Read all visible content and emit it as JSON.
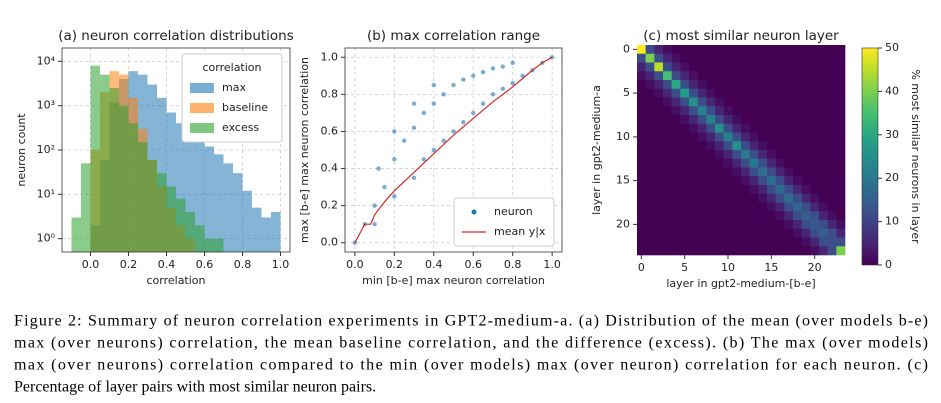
{
  "chart_data": [
    {
      "type": "histogram",
      "title": "(a) neuron correlation distributions",
      "xlabel": "correlation",
      "ylabel": "neuron count",
      "log_y": true,
      "grid": true,
      "legend_title": "correlation",
      "legend": "upper right",
      "bins": [
        -0.1,
        -0.05,
        0,
        0.05,
        0.1,
        0.15,
        0.2,
        0.25,
        0.3,
        0.35,
        0.4,
        0.45,
        0.5,
        0.55,
        0.6,
        0.65,
        0.7,
        0.75,
        0.8,
        0.85,
        0.9,
        0.95,
        1.0
      ],
      "series": [
        {
          "name": "max",
          "color": "#1f77b4",
          "values": [
            0,
            0,
            2,
            60,
            1200,
            4000,
            6000,
            5000,
            3000,
            1500,
            700,
            400,
            250,
            180,
            120,
            80,
            50,
            30,
            12,
            5,
            3,
            4
          ]
        },
        {
          "name": "baseline",
          "color": "#ff7f0e",
          "values": [
            0,
            0,
            100,
            2000,
            6000,
            5000,
            1500,
            300,
            60,
            15,
            5,
            2,
            1,
            0,
            0,
            0,
            0,
            0,
            0,
            0,
            0,
            0
          ]
        },
        {
          "name": "excess",
          "color": "#2ca02c",
          "values": [
            3,
            50,
            8000,
            5000,
            2500,
            1000,
            400,
            150,
            60,
            30,
            15,
            8,
            4,
            2,
            1,
            1,
            0,
            0,
            0,
            0,
            0,
            0
          ]
        }
      ],
      "xlim": [
        -0.15,
        1.05
      ],
      "xticks": [
        {
          "value": 0,
          "label": "0.0"
        },
        {
          "value": 0.2,
          "label": "0.2"
        },
        {
          "value": 0.4,
          "label": "0.4"
        },
        {
          "value": 0.6,
          "label": "0.6"
        },
        {
          "value": 0.8,
          "label": "0.8"
        },
        {
          "value": 1,
          "label": "1.0"
        }
      ],
      "ylim": [
        0.5,
        20000
      ],
      "yticks": [
        {
          "value": 1,
          "label": "10⁰"
        },
        {
          "value": 10,
          "label": "10¹"
        },
        {
          "value": 100,
          "label": "10²"
        },
        {
          "value": 1000,
          "label": "10³"
        },
        {
          "value": 10000,
          "label": "10⁴"
        }
      ]
    },
    {
      "type": "scatter",
      "title": "(b) max correlation range",
      "xlabel": "min [b-e] max neuron correlation",
      "ylabel": "max [b-e] max neuron correlation",
      "grid": true,
      "legend": "lower right",
      "series": [
        {
          "name": "neuron",
          "color": "#1f77b4",
          "kind": "scatter",
          "x": [
            0.1,
            0.1,
            0.15,
            0.2,
            0.2,
            0.25,
            0.3,
            0.3,
            0.35,
            0.35,
            0.4,
            0.4,
            0.45,
            0.45,
            0.5,
            0.5,
            0.55,
            0.55,
            0.6,
            0.6,
            0.65,
            0.65,
            0.7,
            0.7,
            0.75,
            0.75,
            0.8,
            0.8,
            0.85,
            0.9,
            0.95,
            1.0,
            0.0,
            0.05,
            0.12,
            0.2,
            0.3,
            0.4
          ],
          "y": [
            0.1,
            0.2,
            0.3,
            0.45,
            0.25,
            0.55,
            0.35,
            0.62,
            0.45,
            0.7,
            0.5,
            0.75,
            0.55,
            0.8,
            0.6,
            0.85,
            0.65,
            0.88,
            0.7,
            0.9,
            0.75,
            0.92,
            0.8,
            0.94,
            0.83,
            0.95,
            0.86,
            0.97,
            0.9,
            0.93,
            0.97,
            1.0,
            0.0,
            0.1,
            0.4,
            0.6,
            0.75,
            0.85
          ]
        },
        {
          "name": "mean y|x",
          "color": "#d62728",
          "kind": "line",
          "x": [
            0,
            0.05,
            0.08,
            0.1,
            0.15,
            0.2,
            0.3,
            0.4,
            0.5,
            0.6,
            0.7,
            0.8,
            0.9,
            0.95,
            1.0
          ],
          "y": [
            0,
            0.1,
            0.1,
            0.15,
            0.22,
            0.28,
            0.38,
            0.48,
            0.58,
            0.67,
            0.76,
            0.84,
            0.93,
            0.97,
            1.0
          ]
        }
      ],
      "xlim": [
        -0.05,
        1.05
      ],
      "xticks": [
        {
          "value": 0,
          "label": "0.0"
        },
        {
          "value": 0.2,
          "label": "0.2"
        },
        {
          "value": 0.4,
          "label": "0.4"
        },
        {
          "value": 0.6,
          "label": "0.6"
        },
        {
          "value": 0.8,
          "label": "0.8"
        },
        {
          "value": 1,
          "label": "1.0"
        }
      ],
      "ylim": [
        -0.05,
        1.05
      ],
      "yticks": [
        {
          "value": 0,
          "label": "0.0"
        },
        {
          "value": 0.2,
          "label": "0.2"
        },
        {
          "value": 0.4,
          "label": "0.4"
        },
        {
          "value": 0.6,
          "label": "0.6"
        },
        {
          "value": 0.8,
          "label": "0.8"
        },
        {
          "value": 1,
          "label": "1.0"
        }
      ]
    },
    {
      "type": "heatmap",
      "title": "(c) most similar neuron layer",
      "xlabel": "layer in gpt2-medium-[b-e]",
      "ylabel": "layer in gpt2-medium-a",
      "colorbar_label": "% most similar neurons in layer",
      "colormap": "viridis",
      "xlim": [
        -0.5,
        23.5
      ],
      "ylim": [
        23.5,
        -0.5
      ],
      "xticks": [
        0,
        5,
        10,
        15,
        20
      ],
      "yticks": [
        0,
        5,
        10,
        15,
        20
      ],
      "clim": [
        0,
        50
      ],
      "cticks": [
        0,
        10,
        20,
        30,
        40,
        50
      ],
      "values": [
        [
          50,
          12,
          5,
          2,
          0,
          0,
          0,
          0,
          0,
          0,
          0,
          0,
          0,
          0,
          0,
          0,
          0,
          0,
          0,
          0,
          0,
          0,
          0,
          0
        ],
        [
          12,
          40,
          12,
          5,
          2,
          0,
          0,
          0,
          0,
          0,
          0,
          0,
          0,
          0,
          0,
          0,
          0,
          0,
          0,
          0,
          0,
          0,
          0,
          0
        ],
        [
          5,
          12,
          45,
          12,
          5,
          2,
          0,
          0,
          0,
          0,
          0,
          0,
          0,
          0,
          0,
          0,
          0,
          0,
          0,
          0,
          0,
          0,
          0,
          0
        ],
        [
          2,
          5,
          12,
          35,
          12,
          5,
          2,
          0,
          0,
          0,
          0,
          0,
          0,
          0,
          0,
          0,
          0,
          0,
          0,
          0,
          0,
          0,
          0,
          0
        ],
        [
          0,
          2,
          5,
          12,
          30,
          12,
          5,
          2,
          0,
          0,
          0,
          0,
          0,
          0,
          0,
          0,
          0,
          0,
          0,
          0,
          0,
          0,
          0,
          0
        ],
        [
          0,
          0,
          2,
          5,
          12,
          28,
          12,
          5,
          2,
          0,
          0,
          0,
          0,
          0,
          0,
          0,
          0,
          0,
          0,
          0,
          0,
          0,
          0,
          0
        ],
        [
          0,
          0,
          0,
          2,
          5,
          12,
          25,
          12,
          5,
          2,
          0,
          0,
          0,
          0,
          0,
          0,
          0,
          0,
          0,
          0,
          0,
          0,
          0,
          0
        ],
        [
          0,
          0,
          0,
          0,
          2,
          5,
          12,
          22,
          12,
          5,
          2,
          0,
          0,
          0,
          0,
          0,
          0,
          0,
          0,
          0,
          0,
          0,
          0,
          0
        ],
        [
          0,
          0,
          0,
          0,
          0,
          2,
          5,
          12,
          22,
          12,
          5,
          2,
          0,
          0,
          0,
          0,
          0,
          0,
          0,
          0,
          0,
          0,
          0,
          0
        ],
        [
          0,
          0,
          0,
          0,
          0,
          0,
          2,
          5,
          12,
          25,
          12,
          5,
          2,
          0,
          0,
          0,
          0,
          0,
          0,
          0,
          0,
          0,
          0,
          0
        ],
        [
          0,
          0,
          0,
          0,
          0,
          0,
          0,
          2,
          5,
          12,
          22,
          12,
          5,
          2,
          0,
          0,
          0,
          0,
          0,
          0,
          0,
          0,
          0,
          0
        ],
        [
          0,
          0,
          0,
          0,
          0,
          0,
          0,
          0,
          2,
          5,
          12,
          25,
          12,
          5,
          2,
          0,
          0,
          0,
          0,
          0,
          0,
          0,
          0,
          0
        ],
        [
          0,
          0,
          0,
          0,
          0,
          0,
          0,
          0,
          0,
          2,
          5,
          12,
          20,
          12,
          5,
          2,
          0,
          0,
          0,
          0,
          0,
          0,
          0,
          0
        ],
        [
          0,
          0,
          0,
          0,
          0,
          0,
          0,
          0,
          0,
          0,
          2,
          5,
          12,
          20,
          12,
          5,
          2,
          0,
          0,
          0,
          0,
          0,
          0,
          0
        ],
        [
          0,
          0,
          0,
          0,
          0,
          0,
          0,
          0,
          0,
          0,
          0,
          2,
          5,
          12,
          18,
          12,
          5,
          2,
          0,
          0,
          0,
          0,
          0,
          0
        ],
        [
          0,
          0,
          0,
          0,
          0,
          0,
          0,
          0,
          0,
          0,
          0,
          0,
          2,
          5,
          12,
          18,
          12,
          5,
          2,
          0,
          0,
          0,
          0,
          0
        ],
        [
          0,
          0,
          0,
          0,
          0,
          0,
          0,
          0,
          0,
          0,
          0,
          0,
          0,
          2,
          5,
          12,
          17,
          12,
          5,
          2,
          0,
          0,
          0,
          0
        ],
        [
          0,
          0,
          0,
          0,
          0,
          0,
          0,
          0,
          0,
          0,
          0,
          0,
          0,
          0,
          2,
          5,
          12,
          17,
          12,
          5,
          2,
          0,
          0,
          0
        ],
        [
          0,
          0,
          0,
          0,
          0,
          0,
          0,
          0,
          0,
          0,
          0,
          0,
          0,
          0,
          0,
          2,
          5,
          12,
          16,
          12,
          5,
          2,
          0,
          0
        ],
        [
          0,
          0,
          0,
          0,
          0,
          0,
          0,
          0,
          0,
          0,
          0,
          0,
          0,
          0,
          0,
          0,
          2,
          5,
          12,
          15,
          12,
          5,
          2,
          0
        ],
        [
          0,
          0,
          0,
          0,
          0,
          0,
          0,
          0,
          0,
          0,
          0,
          0,
          0,
          0,
          0,
          0,
          0,
          2,
          5,
          12,
          14,
          12,
          5,
          2
        ],
        [
          0,
          0,
          0,
          0,
          0,
          0,
          0,
          0,
          0,
          0,
          0,
          0,
          0,
          0,
          0,
          0,
          0,
          0,
          2,
          5,
          12,
          15,
          12,
          5
        ],
        [
          0,
          0,
          0,
          0,
          0,
          0,
          0,
          0,
          0,
          0,
          0,
          0,
          0,
          0,
          0,
          0,
          0,
          0,
          0,
          2,
          5,
          12,
          12,
          12
        ],
        [
          0,
          0,
          0,
          0,
          0,
          0,
          0,
          0,
          0,
          0,
          0,
          0,
          0,
          0,
          0,
          0,
          0,
          0,
          0,
          0,
          2,
          5,
          12,
          40
        ]
      ]
    }
  ],
  "caption_lines": [
    "Figure 2: Summary of neuron correlation experiments in GPT2-medium-a. (a) Distribution of the mean (over models b-e)",
    "max (over neurons) correlation, the mean baseline correlation, and the difference (excess). (b) The max (over models)",
    "max (over neurons) correlation compared to the min (over models) max (over neuron) correlation for each neuron. (c)",
    "Percentage of layer pairs with most similar neuron pairs."
  ]
}
